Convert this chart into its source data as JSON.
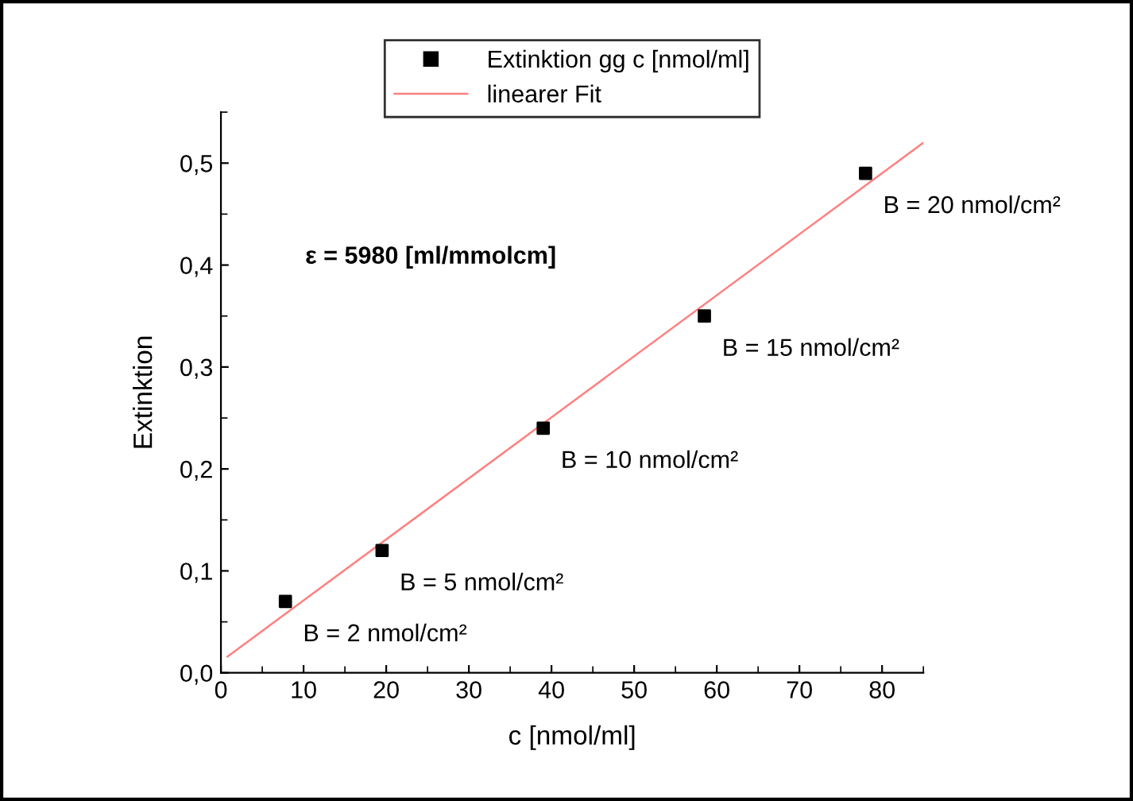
{
  "chart_data": {
    "type": "scatter",
    "xlabel": "c [nmol/ml]",
    "ylabel": "Extinktion",
    "xlim": [
      0,
      85
    ],
    "ylim": [
      0,
      0.55
    ],
    "xticks": [
      0,
      10,
      20,
      30,
      40,
      50,
      60,
      70,
      80
    ],
    "yticks": [
      {
        "value": 0,
        "label": "0,0"
      },
      {
        "value": 0.1,
        "label": "0,1"
      },
      {
        "value": 0.2,
        "label": "0,2"
      },
      {
        "value": 0.3,
        "label": "0,3"
      },
      {
        "value": 0.4,
        "label": "0,4"
      },
      {
        "value": 0.5,
        "label": "0,5"
      }
    ],
    "series": [
      {
        "name": "Extinktion gg c [nmol/ml]",
        "color": "#000000",
        "marker": "square",
        "x": [
          7.8,
          19.5,
          39,
          58.5,
          78
        ],
        "values": [
          0.07,
          0.12,
          0.24,
          0.35,
          0.49
        ]
      },
      {
        "name": "linearer Fit",
        "type": "line",
        "color": "#ff8080",
        "marker": "none",
        "line_style": "solid",
        "x": [
          0.8,
          85
        ],
        "values": [
          0.016,
          0.52
        ]
      }
    ],
    "annotations": [
      "ε = 5980 [ml/mmolcm]",
      {
        "text": "B = 2 nmol/cm²",
        "x": 7.8,
        "y": 0.07
      },
      {
        "text": "B = 5 nmol/cm²",
        "x": 19.5,
        "y": 0.12
      },
      {
        "text": "B = 10 nmol/cm²",
        "x": 39,
        "y": 0.24
      },
      {
        "text": "B = 15 nmol/cm²",
        "x": 58.5,
        "y": 0.35
      },
      {
        "text": "B = 20 nmol/cm²",
        "x": 78,
        "y": 0.49
      }
    ],
    "legend": "top",
    "grid": false
  }
}
